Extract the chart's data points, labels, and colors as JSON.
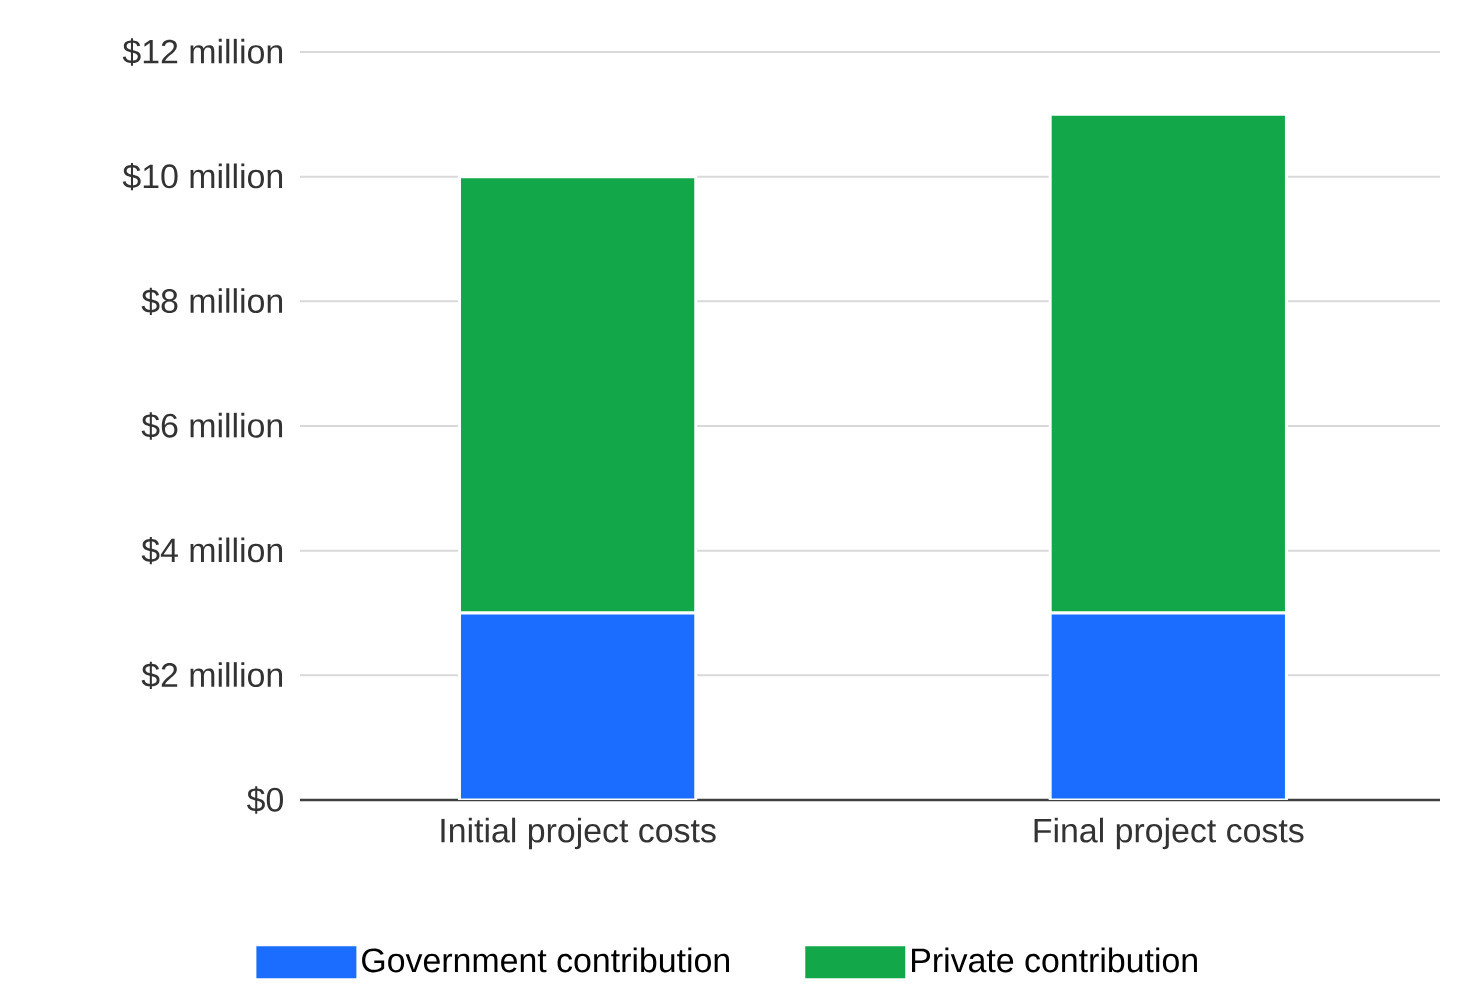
{
  "chart_data": {
    "type": "bar",
    "stacked": true,
    "categories": [
      "Initial project costs",
      "Final project costs"
    ],
    "series": [
      {
        "name": "Government contribution",
        "color": "#1a6dff",
        "values": [
          3,
          3
        ]
      },
      {
        "name": "Private contribution",
        "color": "#12a84a",
        "values": [
          7,
          8
        ]
      }
    ],
    "ylim": [
      0,
      12
    ],
    "yticks": [
      {
        "value": 0,
        "label": "$0"
      },
      {
        "value": 2,
        "label": "$2 million"
      },
      {
        "value": 4,
        "label": "$4 million"
      },
      {
        "value": 6,
        "label": "$6 million"
      },
      {
        "value": 8,
        "label": "$8 million"
      },
      {
        "value": 10,
        "label": "$10 million"
      },
      {
        "value": 12,
        "label": "$12 million"
      }
    ],
    "grid": "y",
    "legend": "bottom"
  }
}
